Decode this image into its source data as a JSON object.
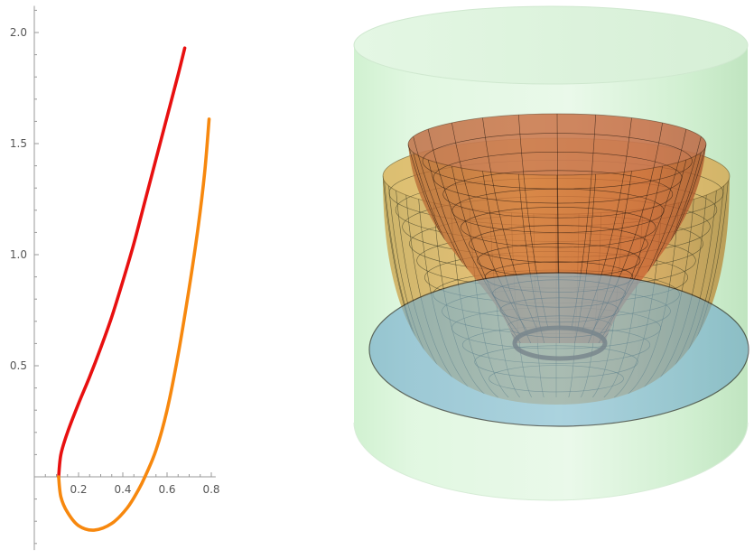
{
  "chart_data": [
    {
      "type": "line",
      "title": "",
      "xlabel": "",
      "ylabel": "",
      "xlim": [
        0,
        0.82
      ],
      "ylim": [
        -0.33,
        2.12
      ],
      "x_ticks": [
        {
          "value": 0.2,
          "label": "0.2"
        },
        {
          "value": 0.4,
          "label": "0.4"
        },
        {
          "value": 0.6,
          "label": "0.6"
        },
        {
          "value": 0.8,
          "label": "0.8"
        }
      ],
      "y_ticks": [
        {
          "value": 0.5,
          "label": "0.5"
        },
        {
          "value": 1.0,
          "label": "1.0"
        },
        {
          "value": 1.5,
          "label": "1.5"
        },
        {
          "value": 2.0,
          "label": "2.0"
        }
      ],
      "series": [
        {
          "color": "#e81010",
          "points": [
            [
              0.11,
              0.0
            ],
            [
              0.12,
              0.1
            ],
            [
              0.15,
              0.2
            ],
            [
              0.2,
              0.33
            ],
            [
              0.25,
              0.45
            ],
            [
              0.3,
              0.58
            ],
            [
              0.35,
              0.72
            ],
            [
              0.4,
              0.88
            ],
            [
              0.45,
              1.05
            ],
            [
              0.5,
              1.24
            ],
            [
              0.55,
              1.43
            ],
            [
              0.6,
              1.62
            ],
            [
              0.65,
              1.81
            ],
            [
              0.68,
              1.93
            ]
          ]
        },
        {
          "color": "#f7880e",
          "points": [
            [
              0.11,
              0.0
            ],
            [
              0.12,
              -0.09
            ],
            [
              0.15,
              -0.16
            ],
            [
              0.2,
              -0.22
            ],
            [
              0.27,
              -0.24
            ],
            [
              0.35,
              -0.21
            ],
            [
              0.42,
              -0.14
            ],
            [
              0.47,
              -0.06
            ],
            [
              0.5,
              0.0
            ],
            [
              0.55,
              0.12
            ],
            [
              0.6,
              0.3
            ],
            [
              0.65,
              0.55
            ],
            [
              0.7,
              0.85
            ],
            [
              0.74,
              1.12
            ],
            [
              0.77,
              1.37
            ],
            [
              0.79,
              1.61
            ]
          ]
        }
      ]
    },
    {
      "type": "3d-surface",
      "title": "",
      "surfaces": [
        {
          "kind": "cylinder",
          "color": "#b9eeb9"
        },
        {
          "kind": "bowl",
          "color": "#e0b24a"
        },
        {
          "kind": "cone",
          "color": "#c05a32"
        },
        {
          "kind": "disk",
          "color": "#6aaed0"
        }
      ]
    }
  ]
}
